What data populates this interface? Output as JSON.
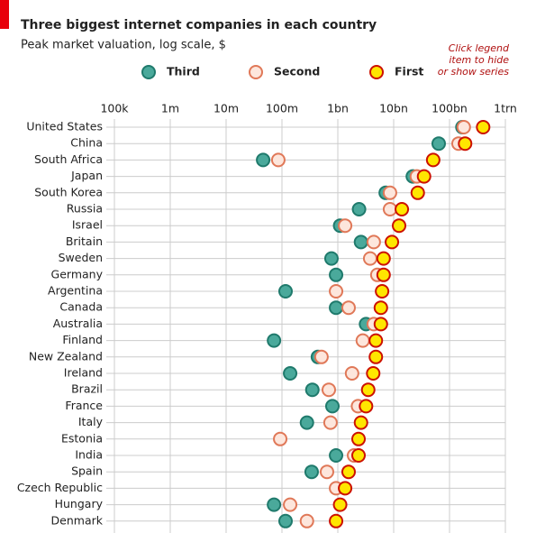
{
  "chart_data": {
    "type": "dot",
    "title": "Three biggest internet companies in each country",
    "subtitle": "Peak market valuation, log scale, $",
    "note": [
      "Click legend",
      "item to hide",
      "or show series"
    ],
    "log_scale": true,
    "grid": true,
    "categories": [
      "United States",
      "China",
      "South Africa",
      "Japan",
      "South Korea",
      "Russia",
      "Israel",
      "Britain",
      "Sweden",
      "Germany",
      "Argentina",
      "Canada",
      "Australia",
      "Finland",
      "New Zealand",
      "Ireland",
      "Brazil",
      "France",
      "Italy",
      "Estonia",
      "India",
      "Spain",
      "Czech Republic",
      "Hungary",
      "Denmark"
    ],
    "xlim": [
      100000,
      1000000000000
    ],
    "xticks": [
      {
        "value": 100000,
        "label": "100k"
      },
      {
        "value": 1000000,
        "label": "1m"
      },
      {
        "value": 10000000,
        "label": "10m"
      },
      {
        "value": 100000000,
        "label": "100m"
      },
      {
        "value": 1000000000,
        "label": "1bn"
      },
      {
        "value": 10000000000,
        "label": "10bn"
      },
      {
        "value": 100000000000,
        "label": "100bn"
      },
      {
        "value": 1000000000000,
        "label": "1trn"
      }
    ],
    "series": [
      {
        "name": "Third",
        "color": "#4aa99b",
        "stroke": "#1f7a6c",
        "values": [
          170000000000,
          64000000000,
          46000000,
          22000000000,
          7200000000,
          2400000000,
          1100000000,
          2600000000,
          770000000,
          930000000,
          116000000,
          930000000,
          3200000000,
          72000000,
          440000000,
          140000000,
          350000000,
          800000000,
          280000000,
          null,
          930000000,
          340000000,
          null,
          72000000,
          116000000
        ]
      },
      {
        "name": "Second",
        "color": "#fde6dc",
        "stroke": "#e07858",
        "values": [
          180000000000,
          145000000000,
          86000000,
          26000000000,
          8600000000,
          8600000000,
          1350000000,
          4400000000,
          3800000000,
          5100000000,
          930000000,
          1560000000,
          4400000000,
          2800000000,
          510000000,
          1800000000,
          690000000,
          2300000000,
          740000000,
          93000000,
          1950000000,
          640000000,
          930000000,
          140000000,
          280000000
        ]
      },
      {
        "name": "First",
        "color": "#ffe600",
        "stroke": "#cc1100",
        "values": [
          400000000000,
          190000000000,
          51000000000,
          35000000000,
          27000000000,
          14000000000,
          12500000000,
          9300000000,
          6600000000,
          6600000000,
          6200000000,
          5900000000,
          5900000000,
          4800000000,
          4800000000,
          4300000000,
          3500000000,
          3200000000,
          2600000000,
          2350000000,
          2350000000,
          1560000000,
          1350000000,
          1100000000,
          930000000
        ]
      }
    ]
  }
}
